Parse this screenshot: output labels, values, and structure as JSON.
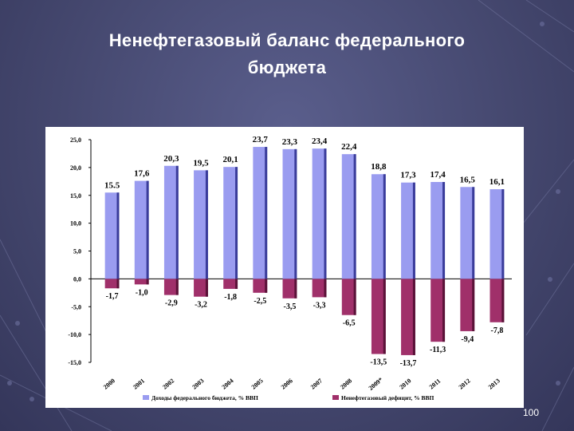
{
  "slide": {
    "title_line1": "Ненефтегазовый баланс федерального",
    "title_line2": "бюджета",
    "page_number": "100"
  },
  "chart_data": {
    "type": "bar",
    "categories": [
      "2000",
      "2001",
      "2002",
      "2003",
      "2004",
      "2005",
      "2006",
      "2007",
      "2008",
      "2009*",
      "2010",
      "2011",
      "2012",
      "2013"
    ],
    "series": [
      {
        "name": "Доходы федерального бюджета, % ВВП",
        "values": [
          15.5,
          17.6,
          20.3,
          19.5,
          20.1,
          23.7,
          23.3,
          23.4,
          22.4,
          18.8,
          17.3,
          17.4,
          16.5,
          16.1
        ],
        "labels": [
          "15.5",
          "17,6",
          "20,3",
          "19,5",
          "20,1",
          "23,7",
          "23,3",
          "23,4",
          "22,4",
          "18,8",
          "17,3",
          "17,4",
          "16,5",
          "16,1"
        ],
        "color": "#9a9cf0"
      },
      {
        "name": "Ненефтегазовый дефицит, % ВВП",
        "values": [
          -1.7,
          -1.0,
          -2.9,
          -3.2,
          -1.8,
          -2.5,
          -3.5,
          -3.3,
          -6.5,
          -13.5,
          -13.7,
          -11.3,
          -9.4,
          -7.8
        ],
        "labels": [
          "-1,7",
          "-1,0",
          "-2,9",
          "-3,2",
          "-1,8",
          "-2,5",
          "-3,5",
          "-3,3",
          "-6,5",
          "-13,5",
          "-13,7",
          "-11,3",
          "-9,4",
          "-7,8"
        ],
        "color": "#a0306a"
      }
    ],
    "ylim": [
      -15,
      25
    ],
    "yticks": [
      25,
      20,
      15,
      10,
      5,
      0,
      -5,
      -10,
      -15
    ],
    "ytick_labels": [
      "25,0",
      "20,0",
      "15,0",
      "10,0",
      "5,0",
      "0,0",
      "-5,0",
      "-10,0",
      "-15,0"
    ],
    "grid": false,
    "legend": "bottom"
  }
}
